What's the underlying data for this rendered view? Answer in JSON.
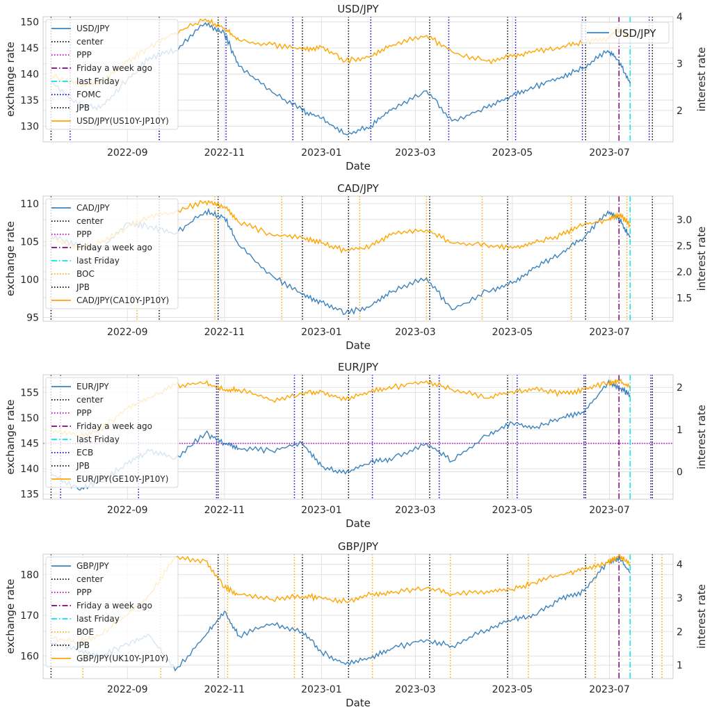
{
  "colors": {
    "fx": "#3b83bd",
    "spread": "#ffa500",
    "center": "#000000",
    "ppp": "#bf00bf",
    "week_ago": "#800080",
    "last_friday": "#00e5ee",
    "grid": "#e0e0e0",
    "frame": "#cccccc",
    "bank_blue": "#0000cd",
    "bank_orange": "#ffa500"
  },
  "chart_data": [
    {
      "type": "line",
      "title": "USD/JPY",
      "xlabel": "Date",
      "ylabel": "exchange rate",
      "y2label": "interest rate",
      "xticks": [
        "2022-09",
        "2022-11",
        "2023-01",
        "2023-03",
        "2023-05",
        "2023-07"
      ],
      "ylim": [
        127,
        151
      ],
      "yticks": [
        130,
        135,
        140,
        145,
        150
      ],
      "y2lim": [
        1.33,
        4.0
      ],
      "y2ticks": [
        2,
        3,
        4
      ],
      "bank": "FOMC",
      "bank_color": "blue",
      "extra_legend": "USD/JPY",
      "legend": [
        "USD/JPY",
        "center",
        "PPP",
        "Friday a week ago",
        "last Friday",
        "FOMC",
        "JPB",
        "USD/JPY(US10Y-JP10Y)"
      ],
      "series": [
        {
          "name": "USD/JPY",
          "axis": "left",
          "x": [
            "2022-07-15",
            "2022-08-01",
            "2022-08-15",
            "2022-09-01",
            "2022-09-15",
            "2022-10-01",
            "2022-10-20",
            "2022-11-01",
            "2022-11-10",
            "2022-12-01",
            "2022-12-20",
            "2023-01-01",
            "2023-01-16",
            "2023-02-01",
            "2023-02-15",
            "2023-03-08",
            "2023-03-24",
            "2023-04-15",
            "2023-05-01",
            "2023-05-15",
            "2023-06-01",
            "2023-06-15",
            "2023-06-30",
            "2023-07-07",
            "2023-07-14"
          ],
          "y": [
            138.5,
            134.2,
            133.5,
            139.0,
            143.2,
            144.5,
            149.8,
            147.8,
            141.5,
            136.5,
            133.0,
            131.5,
            128.5,
            130.0,
            133.5,
            136.8,
            131.0,
            133.5,
            135.8,
            137.5,
            139.5,
            141.2,
            144.5,
            142.5,
            138.2
          ]
        },
        {
          "name": "USD/JPY(US10Y-JP10Y)",
          "axis": "right",
          "x": [
            "2022-07-15",
            "2022-08-01",
            "2022-08-15",
            "2022-09-01",
            "2022-09-15",
            "2022-10-01",
            "2022-10-20",
            "2022-11-01",
            "2022-11-10",
            "2022-12-01",
            "2022-12-20",
            "2023-01-01",
            "2023-01-16",
            "2023-02-01",
            "2023-02-15",
            "2023-03-08",
            "2023-03-24",
            "2023-04-15",
            "2023-05-01",
            "2023-05-15",
            "2023-06-01",
            "2023-06-15",
            "2023-06-30",
            "2023-07-07",
            "2023-07-14"
          ],
          "y": [
            2.75,
            2.55,
            2.6,
            3.05,
            3.35,
            3.65,
            3.95,
            3.75,
            3.5,
            3.4,
            3.3,
            3.35,
            3.05,
            3.15,
            3.4,
            3.6,
            3.25,
            3.05,
            3.15,
            3.25,
            3.35,
            3.45,
            3.55,
            3.75,
            3.55
          ]
        }
      ],
      "vlines": {
        "center": [
          "2022-07-15",
          "2022-09-21",
          "2022-10-28",
          "2022-12-20",
          "2023-01-18",
          "2023-03-10",
          "2023-04-28",
          "2023-06-16",
          "2023-07-28"
        ],
        "bank": [
          "2022-07-27",
          "2022-09-21",
          "2022-11-02",
          "2022-12-14",
          "2023-02-01",
          "2023-03-22",
          "2023-05-03",
          "2023-06-14",
          "2023-07-26"
        ],
        "week_ago": "2023-07-07",
        "last_friday": "2023-07-14"
      }
    },
    {
      "type": "line",
      "title": "CAD/JPY",
      "xlabel": "Date",
      "ylabel": "exchange rate",
      "y2label": "interest rate",
      "xticks": [
        "2022-09",
        "2022-11",
        "2023-01",
        "2023-03",
        "2023-05",
        "2023-07"
      ],
      "ylim": [
        94.5,
        111
      ],
      "yticks": [
        95,
        100,
        105,
        110
      ],
      "y2lim": [
        1.05,
        3.45
      ],
      "y2ticks": [
        "1.5",
        "2.0",
        "2.5",
        "3.0"
      ],
      "bank": "BOC",
      "bank_color": "orange",
      "legend": [
        "CAD/JPY",
        "center",
        "PPP",
        "Friday a week ago",
        "last Friday",
        "BOC",
        "JPB",
        "CAD/JPY(CA10Y-JP10Y)"
      ],
      "series": [
        {
          "name": "CAD/JPY",
          "axis": "left",
          "x": [
            "2022-07-15",
            "2022-08-01",
            "2022-08-15",
            "2022-09-01",
            "2022-09-15",
            "2022-10-01",
            "2022-10-20",
            "2022-11-01",
            "2022-11-10",
            "2022-12-01",
            "2022-12-20",
            "2023-01-01",
            "2023-01-16",
            "2023-02-01",
            "2023-02-15",
            "2023-03-08",
            "2023-03-24",
            "2023-04-15",
            "2023-05-01",
            "2023-05-15",
            "2023-06-01",
            "2023-06-15",
            "2023-06-30",
            "2023-07-07",
            "2023-07-14"
          ],
          "y": [
            105.8,
            104.5,
            104.0,
            107.5,
            107.0,
            106.0,
            109.0,
            108.2,
            104.5,
            100.5,
            98.0,
            97.0,
            95.5,
            96.5,
            98.5,
            100.2,
            96.0,
            98.5,
            99.5,
            101.5,
            103.5,
            105.5,
            109.0,
            108.0,
            105.5
          ]
        },
        {
          "name": "CAD/JPY(CA10Y-JP10Y)",
          "axis": "right",
          "x": [
            "2022-07-15",
            "2022-08-01",
            "2022-08-15",
            "2022-09-01",
            "2022-09-15",
            "2022-10-01",
            "2022-10-20",
            "2022-11-01",
            "2022-11-10",
            "2022-12-01",
            "2022-12-20",
            "2023-01-01",
            "2023-01-16",
            "2023-02-01",
            "2023-02-15",
            "2023-03-08",
            "2023-03-24",
            "2023-04-15",
            "2023-05-01",
            "2023-05-15",
            "2023-06-01",
            "2023-06-15",
            "2023-06-30",
            "2023-07-07",
            "2023-07-14"
          ],
          "y": [
            2.65,
            2.45,
            2.55,
            2.85,
            3.05,
            3.15,
            3.35,
            3.25,
            2.95,
            2.7,
            2.65,
            2.55,
            2.4,
            2.5,
            2.75,
            2.8,
            2.55,
            2.5,
            2.45,
            2.55,
            2.7,
            2.9,
            3.0,
            3.1,
            2.9
          ]
        }
      ],
      "vlines": {
        "center": [
          "2022-07-15",
          "2022-09-21",
          "2022-10-28",
          "2022-12-20",
          "2023-01-18",
          "2023-03-10",
          "2023-04-28",
          "2023-06-16",
          "2023-07-28"
        ],
        "bank": [
          "2022-09-07",
          "2022-10-26",
          "2022-12-07",
          "2023-01-25",
          "2023-03-08",
          "2023-04-12",
          "2023-06-07",
          "2023-07-12"
        ],
        "week_ago": "2023-07-07",
        "last_friday": "2023-07-14"
      }
    },
    {
      "type": "line",
      "title": "EUR/JPY",
      "xlabel": "Date",
      "ylabel": "exchange rate",
      "y2label": "interest rate",
      "xticks": [
        "2022-09",
        "2022-11",
        "2023-01",
        "2023-03",
        "2023-05",
        "2023-07"
      ],
      "ylim": [
        134,
        158.5
      ],
      "yticks": [
        135,
        140,
        145,
        150,
        155
      ],
      "y2lim": [
        -0.65,
        2.3
      ],
      "y2ticks": [
        0,
        1,
        2
      ],
      "bank": "ECB",
      "bank_color": "blue",
      "ppp_level": 145,
      "legend": [
        "EUR/JPY",
        "center",
        "PPP",
        "Friday a week ago",
        "last Friday",
        "ECB",
        "JPB",
        "EUR/JPY(GE10Y-JP10Y)"
      ],
      "series": [
        {
          "name": "EUR/JPY",
          "axis": "left",
          "x": [
            "2022-07-15",
            "2022-08-01",
            "2022-08-15",
            "2022-09-01",
            "2022-09-15",
            "2022-10-01",
            "2022-10-20",
            "2022-11-01",
            "2022-11-10",
            "2022-12-01",
            "2022-12-20",
            "2023-01-01",
            "2023-01-16",
            "2023-02-01",
            "2023-02-15",
            "2023-03-08",
            "2023-03-24",
            "2023-04-15",
            "2023-05-01",
            "2023-05-15",
            "2023-06-01",
            "2023-06-15",
            "2023-06-30",
            "2023-07-07",
            "2023-07-14"
          ],
          "y": [
            139.0,
            136.0,
            137.5,
            141.0,
            143.5,
            142.0,
            147.0,
            145.0,
            144.0,
            143.5,
            145.0,
            140.5,
            139.0,
            141.5,
            142.0,
            145.0,
            141.5,
            146.5,
            149.0,
            148.0,
            150.0,
            151.0,
            157.0,
            156.0,
            154.5
          ]
        },
        {
          "name": "EUR/JPY(GE10Y-JP10Y)",
          "axis": "right",
          "x": [
            "2022-07-15",
            "2022-08-01",
            "2022-08-15",
            "2022-09-01",
            "2022-09-15",
            "2022-10-01",
            "2022-10-20",
            "2022-11-01",
            "2022-11-10",
            "2022-12-01",
            "2022-12-20",
            "2023-01-01",
            "2023-01-16",
            "2023-02-01",
            "2023-02-15",
            "2023-03-08",
            "2023-03-24",
            "2023-04-15",
            "2023-05-01",
            "2023-05-15",
            "2023-06-01",
            "2023-06-15",
            "2023-06-30",
            "2023-07-07",
            "2023-07-14"
          ],
          "y": [
            1.0,
            0.85,
            1.0,
            1.5,
            1.75,
            2.05,
            2.1,
            1.95,
            1.95,
            1.7,
            1.85,
            1.9,
            1.7,
            1.9,
            2.0,
            2.15,
            1.95,
            1.75,
            1.9,
            1.95,
            1.85,
            1.95,
            2.1,
            2.15,
            2.0
          ]
        }
      ],
      "vlines": {
        "center": [
          "2022-07-15",
          "2022-10-28",
          "2022-12-20",
          "2023-01-18",
          "2023-03-10",
          "2023-04-28",
          "2023-06-16",
          "2023-07-28"
        ],
        "bank": [
          "2022-07-21",
          "2022-09-08",
          "2022-10-27",
          "2022-12-15",
          "2023-02-02",
          "2023-03-16",
          "2023-05-04",
          "2023-06-15",
          "2023-07-27"
        ],
        "week_ago": "2023-07-07",
        "last_friday": "2023-07-14"
      }
    },
    {
      "type": "line",
      "title": "GBP/JPY",
      "xlabel": "Date",
      "ylabel": "exchange rate",
      "y2label": "interest rate",
      "xticks": [
        "2022-09",
        "2022-11",
        "2023-01",
        "2023-03",
        "2023-05",
        "2023-07"
      ],
      "ylim": [
        154.5,
        185
      ],
      "yticks": [
        160,
        170,
        180
      ],
      "y2lim": [
        0.6,
        4.3
      ],
      "y2ticks": [
        1,
        2,
        3,
        4
      ],
      "bank": "BOE",
      "bank_color": "orange",
      "legend": [
        "GBP/JPY",
        "center",
        "PPP",
        "Friday a week ago",
        "last Friday",
        "BOE",
        "JPB",
        "GBP/JPY(UK10Y-JP10Y)"
      ],
      "series": [
        {
          "name": "GBP/JPY",
          "axis": "left",
          "x": [
            "2022-07-15",
            "2022-08-01",
            "2022-08-15",
            "2022-09-01",
            "2022-09-15",
            "2022-10-01",
            "2022-10-20",
            "2022-11-01",
            "2022-11-10",
            "2022-12-01",
            "2022-12-20",
            "2023-01-01",
            "2023-01-16",
            "2023-02-01",
            "2023-02-15",
            "2023-03-08",
            "2023-03-24",
            "2023-04-15",
            "2023-05-01",
            "2023-05-15",
            "2023-06-01",
            "2023-06-15",
            "2023-06-30",
            "2023-07-07",
            "2023-07-14"
          ],
          "y": [
            163.5,
            161.5,
            160.0,
            163.0,
            165.0,
            156.5,
            165.0,
            171.0,
            165.0,
            168.0,
            166.0,
            161.0,
            158.0,
            159.5,
            162.0,
            164.0,
            162.5,
            166.5,
            169.0,
            170.0,
            174.0,
            176.0,
            183.0,
            184.0,
            180.5
          ]
        },
        {
          "name": "GBP/JPY(UK10Y-JP10Y)",
          "axis": "right",
          "x": [
            "2022-07-15",
            "2022-08-01",
            "2022-08-15",
            "2022-09-01",
            "2022-09-15",
            "2022-10-01",
            "2022-10-20",
            "2022-11-01",
            "2022-11-10",
            "2022-12-01",
            "2022-12-20",
            "2023-01-01",
            "2023-01-16",
            "2023-02-01",
            "2023-02-15",
            "2023-03-08",
            "2023-03-24",
            "2023-04-15",
            "2023-05-01",
            "2023-05-15",
            "2023-06-01",
            "2023-06-15",
            "2023-06-30",
            "2023-07-07",
            "2023-07-14"
          ],
          "y": [
            1.8,
            1.7,
            1.9,
            2.5,
            3.1,
            4.2,
            4.1,
            3.3,
            3.1,
            2.95,
            3.05,
            3.0,
            2.9,
            3.1,
            3.15,
            3.3,
            3.1,
            3.2,
            3.25,
            3.45,
            3.7,
            3.85,
            4.05,
            4.25,
            4.0
          ]
        }
      ],
      "vlines": {
        "center": [
          "2022-07-15",
          "2022-10-28",
          "2022-12-20",
          "2023-01-18",
          "2023-03-10",
          "2023-04-28",
          "2023-06-16",
          "2023-07-28"
        ],
        "bank": [
          "2022-08-04",
          "2022-09-22",
          "2022-11-03",
          "2022-12-15",
          "2023-02-02",
          "2023-03-23",
          "2023-05-11",
          "2023-06-22",
          "2023-08-03"
        ],
        "week_ago": "2023-07-07",
        "last_friday": "2023-07-14"
      }
    }
  ]
}
